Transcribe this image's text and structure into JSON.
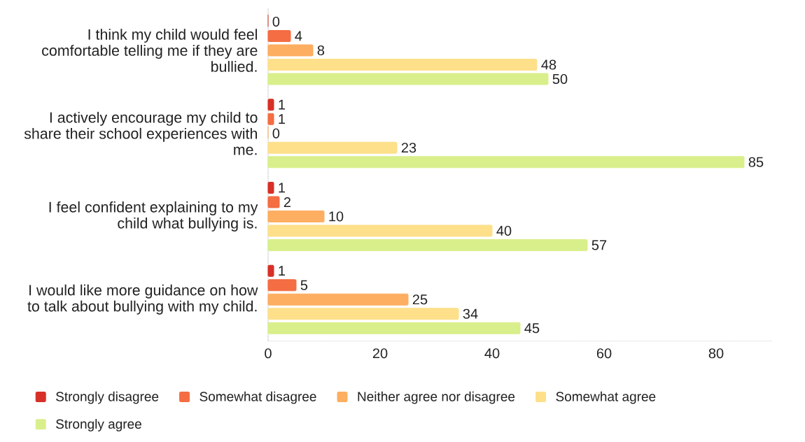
{
  "chart_data": {
    "type": "bar",
    "orientation": "horizontal",
    "categories": [
      "I think my child would feel comfortable telling me if they are bullied.",
      "I actively encourage my child to share their school experiences with me.",
      "I feel confident explaining to my child what bullying is.",
      "I would like more guidance on how to talk about bullying with my child."
    ],
    "series": [
      {
        "name": "Strongly disagree",
        "color": "#d73027",
        "values": [
          0,
          1,
          1,
          1
        ]
      },
      {
        "name": "Somewhat disagree",
        "color": "#f46d43",
        "values": [
          4,
          1,
          2,
          5
        ]
      },
      {
        "name": "Neither agree nor disagree",
        "color": "#fdae61",
        "values": [
          8,
          0,
          10,
          25
        ]
      },
      {
        "name": "Somewhat agree",
        "color": "#fee08b",
        "values": [
          48,
          23,
          40,
          34
        ]
      },
      {
        "name": "Strongly agree",
        "color": "#d9ef8b",
        "values": [
          50,
          85,
          57,
          45
        ]
      }
    ],
    "xlim": [
      0,
      90
    ],
    "xticks": [
      0,
      20,
      40,
      60,
      80
    ],
    "data_labels": true,
    "legend": "bottom",
    "grid": false
  }
}
